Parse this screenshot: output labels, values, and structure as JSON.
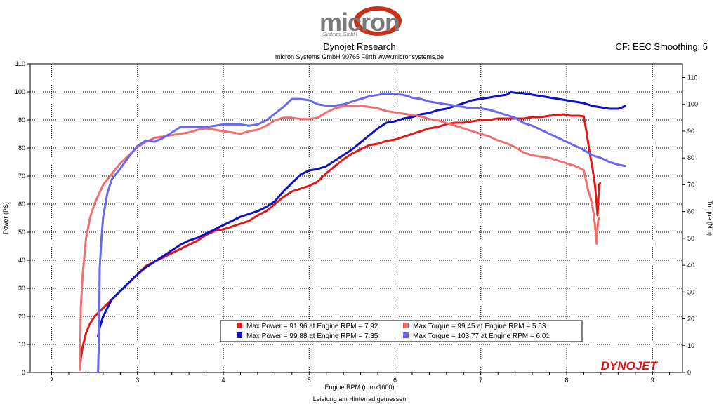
{
  "header": {
    "logo_text": "micron",
    "logo_sub": "Systems GmbH",
    "title": "Dynojet Research",
    "subtitle": "micron Systems GmbH  90765 Fürth www.micronsystems.de",
    "cf_label": "CF: EEC Smoothing: 5"
  },
  "watermark": {
    "text": "DYNOJET"
  },
  "chart_data": {
    "type": "line",
    "title": "Dynojet Research",
    "xlabel": "Engine RPM (rpmx1000)",
    "footer": "Leistung am Hinterrad gemessen",
    "ylabel": "Power (PS)",
    "y2label": "Torque (Nm)",
    "xlim": [
      1.75,
      9.35
    ],
    "ylim": [
      0,
      110
    ],
    "y2lim": [
      0,
      115.1
    ],
    "xticks": [
      2,
      3,
      4,
      5,
      6,
      7,
      8,
      9
    ],
    "yticks": [
      0,
      10,
      20,
      30,
      40,
      50,
      60,
      70,
      80,
      90,
      100,
      110
    ],
    "y2ticks": [
      0,
      10,
      20,
      30,
      40,
      50,
      60,
      70,
      80,
      90,
      100,
      110
    ],
    "grid": true,
    "legend_position": "bottom-center",
    "legend": [
      "Max Power = 91.96 at Engine RPM = 7.92",
      "Max Power = 99.88 at Engine RPM = 7.35",
      "Max Torque = 99.45 at Engine RPM = 5.53",
      "Max Torque = 103.77 at Engine RPM = 6.01"
    ],
    "series": [
      {
        "name": "Power run 1",
        "axis": "left",
        "color": "#e01818",
        "points": [
          [
            2.33,
            1
          ],
          [
            2.34,
            5
          ],
          [
            2.36,
            9
          ],
          [
            2.4,
            14
          ],
          [
            2.44,
            17
          ],
          [
            2.5,
            20
          ],
          [
            2.6,
            23
          ],
          [
            2.7,
            26
          ],
          [
            2.8,
            29
          ],
          [
            2.9,
            32
          ],
          [
            3.0,
            35
          ],
          [
            3.1,
            38
          ],
          [
            3.2,
            39.5
          ],
          [
            3.3,
            41
          ],
          [
            3.4,
            42.5
          ],
          [
            3.5,
            44
          ],
          [
            3.6,
            45.5
          ],
          [
            3.7,
            47
          ],
          [
            3.8,
            49
          ],
          [
            3.9,
            50.5
          ],
          [
            4.0,
            51
          ],
          [
            4.1,
            52
          ],
          [
            4.2,
            53
          ],
          [
            4.3,
            54
          ],
          [
            4.4,
            56
          ],
          [
            4.5,
            57.5
          ],
          [
            4.6,
            60
          ],
          [
            4.7,
            62.5
          ],
          [
            4.8,
            64.5
          ],
          [
            4.9,
            65.5
          ],
          [
            5.0,
            66.5
          ],
          [
            5.1,
            68
          ],
          [
            5.2,
            71
          ],
          [
            5.3,
            73.5
          ],
          [
            5.4,
            76
          ],
          [
            5.5,
            78
          ],
          [
            5.6,
            79.5
          ],
          [
            5.7,
            81
          ],
          [
            5.8,
            81.5
          ],
          [
            5.9,
            82.5
          ],
          [
            6.0,
            83
          ],
          [
            6.1,
            84
          ],
          [
            6.2,
            85
          ],
          [
            6.3,
            86
          ],
          [
            6.4,
            87
          ],
          [
            6.5,
            87.5
          ],
          [
            6.6,
            88.5
          ],
          [
            6.7,
            89
          ],
          [
            6.8,
            89
          ],
          [
            6.9,
            89.5
          ],
          [
            7.0,
            90
          ],
          [
            7.1,
            90
          ],
          [
            7.2,
            90.5
          ],
          [
            7.3,
            90.5
          ],
          [
            7.4,
            90.5
          ],
          [
            7.5,
            90.5
          ],
          [
            7.6,
            91
          ],
          [
            7.7,
            91
          ],
          [
            7.8,
            91.5
          ],
          [
            7.9,
            91.8
          ],
          [
            7.96,
            92
          ],
          [
            8.05,
            91.5
          ],
          [
            8.15,
            91.5
          ],
          [
            8.2,
            91.3
          ],
          [
            8.23,
            86
          ],
          [
            8.27,
            78
          ],
          [
            8.3,
            73
          ],
          [
            8.33,
            67
          ],
          [
            8.35,
            60
          ],
          [
            8.36,
            56
          ],
          [
            8.37,
            62
          ],
          [
            8.38,
            67
          ],
          [
            8.39,
            67.5
          ]
        ]
      },
      {
        "name": "Power run 2",
        "axis": "left",
        "color": "#1010c8",
        "points": [
          [
            2.54,
            13
          ],
          [
            2.56,
            16
          ],
          [
            2.6,
            20
          ],
          [
            2.65,
            23
          ],
          [
            2.7,
            26
          ],
          [
            2.8,
            29
          ],
          [
            2.9,
            32
          ],
          [
            3.0,
            35
          ],
          [
            3.1,
            37.5
          ],
          [
            3.2,
            39.5
          ],
          [
            3.3,
            41.5
          ],
          [
            3.4,
            43.5
          ],
          [
            3.5,
            45.5
          ],
          [
            3.6,
            47
          ],
          [
            3.7,
            48
          ],
          [
            3.8,
            49.5
          ],
          [
            3.9,
            51
          ],
          [
            4.0,
            52.5
          ],
          [
            4.1,
            54
          ],
          [
            4.2,
            55.5
          ],
          [
            4.3,
            56.5
          ],
          [
            4.4,
            57.5
          ],
          [
            4.5,
            59
          ],
          [
            4.6,
            61
          ],
          [
            4.7,
            64.5
          ],
          [
            4.8,
            67.5
          ],
          [
            4.9,
            70.5
          ],
          [
            5.0,
            72
          ],
          [
            5.1,
            72.5
          ],
          [
            5.2,
            73.5
          ],
          [
            5.3,
            75.5
          ],
          [
            5.4,
            77.5
          ],
          [
            5.5,
            79.5
          ],
          [
            5.6,
            82
          ],
          [
            5.7,
            84.5
          ],
          [
            5.8,
            87
          ],
          [
            5.9,
            89
          ],
          [
            6.0,
            89.5
          ],
          [
            6.1,
            90.5
          ],
          [
            6.2,
            91
          ],
          [
            6.3,
            92
          ],
          [
            6.4,
            92.5
          ],
          [
            6.5,
            93.5
          ],
          [
            6.6,
            94
          ],
          [
            6.7,
            95
          ],
          [
            6.8,
            96
          ],
          [
            6.9,
            97
          ],
          [
            7.0,
            97.5
          ],
          [
            7.1,
            98
          ],
          [
            7.2,
            98.5
          ],
          [
            7.3,
            99
          ],
          [
            7.35,
            99.9
          ],
          [
            7.4,
            99.7
          ],
          [
            7.5,
            99.5
          ],
          [
            7.6,
            99
          ],
          [
            7.7,
            98.5
          ],
          [
            7.8,
            98
          ],
          [
            7.9,
            97.5
          ],
          [
            8.0,
            97
          ],
          [
            8.1,
            96.5
          ],
          [
            8.2,
            96
          ],
          [
            8.3,
            95
          ],
          [
            8.4,
            94.5
          ],
          [
            8.5,
            94
          ],
          [
            8.6,
            94
          ],
          [
            8.65,
            94.5
          ],
          [
            8.68,
            95
          ]
        ]
      },
      {
        "name": "Torque run 1",
        "axis": "right",
        "color": "#f07070",
        "points": [
          [
            2.33,
            1
          ],
          [
            2.34,
            24
          ],
          [
            2.36,
            36
          ],
          [
            2.4,
            50
          ],
          [
            2.45,
            58
          ],
          [
            2.5,
            63
          ],
          [
            2.6,
            70
          ],
          [
            2.7,
            74
          ],
          [
            2.8,
            78
          ],
          [
            2.9,
            81
          ],
          [
            3.0,
            84
          ],
          [
            3.1,
            86
          ],
          [
            3.2,
            87.5
          ],
          [
            3.3,
            88
          ],
          [
            3.4,
            88.5
          ],
          [
            3.5,
            89
          ],
          [
            3.6,
            89.5
          ],
          [
            3.7,
            90.5
          ],
          [
            3.8,
            91
          ],
          [
            3.9,
            90.5
          ],
          [
            4.0,
            90
          ],
          [
            4.1,
            89.5
          ],
          [
            4.2,
            89
          ],
          [
            4.3,
            90
          ],
          [
            4.4,
            90.5
          ],
          [
            4.5,
            92
          ],
          [
            4.6,
            94
          ],
          [
            4.7,
            95
          ],
          [
            4.8,
            95
          ],
          [
            4.9,
            94.5
          ],
          [
            5.0,
            94.5
          ],
          [
            5.1,
            95
          ],
          [
            5.2,
            97
          ],
          [
            5.3,
            98.5
          ],
          [
            5.4,
            99.3
          ],
          [
            5.53,
            99.45
          ],
          [
            5.6,
            99.5
          ],
          [
            5.7,
            99
          ],
          [
            5.8,
            98.5
          ],
          [
            5.9,
            97.5
          ],
          [
            6.0,
            97
          ],
          [
            6.1,
            96.5
          ],
          [
            6.2,
            96
          ],
          [
            6.3,
            95.5
          ],
          [
            6.4,
            94.5
          ],
          [
            6.5,
            94
          ],
          [
            6.6,
            93
          ],
          [
            6.7,
            92
          ],
          [
            6.8,
            91
          ],
          [
            6.9,
            90
          ],
          [
            7.0,
            89
          ],
          [
            7.1,
            88
          ],
          [
            7.2,
            86.5
          ],
          [
            7.3,
            85.5
          ],
          [
            7.4,
            84
          ],
          [
            7.5,
            82
          ],
          [
            7.6,
            81
          ],
          [
            7.7,
            80.5
          ],
          [
            7.8,
            80
          ],
          [
            7.9,
            79
          ],
          [
            8.0,
            78
          ],
          [
            8.1,
            77
          ],
          [
            8.2,
            75.5
          ],
          [
            8.23,
            71
          ],
          [
            8.25,
            68
          ],
          [
            8.28,
            65
          ],
          [
            8.3,
            62
          ],
          [
            8.32,
            58
          ],
          [
            8.34,
            52
          ],
          [
            8.35,
            48
          ],
          [
            8.36,
            54
          ],
          [
            8.37,
            57
          ],
          [
            8.38,
            57.5
          ]
        ]
      },
      {
        "name": "Torque run 2",
        "axis": "right",
        "color": "#6868f0",
        "points": [
          [
            2.54,
            0
          ],
          [
            2.55,
            12
          ],
          [
            2.56,
            39
          ],
          [
            2.58,
            50
          ],
          [
            2.6,
            58
          ],
          [
            2.65,
            67
          ],
          [
            2.7,
            72
          ],
          [
            2.8,
            76
          ],
          [
            2.9,
            80.5
          ],
          [
            3.0,
            84.5
          ],
          [
            3.1,
            86.5
          ],
          [
            3.2,
            86
          ],
          [
            3.3,
            87.5
          ],
          [
            3.4,
            89.5
          ],
          [
            3.5,
            91.5
          ],
          [
            3.6,
            91.5
          ],
          [
            3.7,
            91.5
          ],
          [
            3.8,
            91.5
          ],
          [
            3.9,
            92
          ],
          [
            4.0,
            92.5
          ],
          [
            4.1,
            92.5
          ],
          [
            4.2,
            92.5
          ],
          [
            4.3,
            92
          ],
          [
            4.4,
            92.5
          ],
          [
            4.5,
            94
          ],
          [
            4.6,
            96.5
          ],
          [
            4.7,
            99
          ],
          [
            4.8,
            102
          ],
          [
            4.9,
            102
          ],
          [
            5.0,
            101.5
          ],
          [
            5.1,
            100
          ],
          [
            5.2,
            99.5
          ],
          [
            5.3,
            99.5
          ],
          [
            5.4,
            100
          ],
          [
            5.5,
            101
          ],
          [
            5.6,
            102
          ],
          [
            5.7,
            103
          ],
          [
            5.8,
            103.5
          ],
          [
            5.9,
            104
          ],
          [
            6.01,
            103.77
          ],
          [
            6.1,
            103.5
          ],
          [
            6.2,
            102.5
          ],
          [
            6.3,
            102
          ],
          [
            6.4,
            101
          ],
          [
            6.5,
            100.5
          ],
          [
            6.6,
            100
          ],
          [
            6.7,
            99.5
          ],
          [
            6.8,
            99
          ],
          [
            6.9,
            98.5
          ],
          [
            7.0,
            98.5
          ],
          [
            7.1,
            98
          ],
          [
            7.2,
            97
          ],
          [
            7.3,
            96
          ],
          [
            7.4,
            95
          ],
          [
            7.5,
            93
          ],
          [
            7.6,
            92
          ],
          [
            7.7,
            90.5
          ],
          [
            7.8,
            89
          ],
          [
            7.9,
            87.5
          ],
          [
            8.0,
            86
          ],
          [
            8.1,
            84.5
          ],
          [
            8.2,
            83
          ],
          [
            8.3,
            81
          ],
          [
            8.4,
            80
          ],
          [
            8.5,
            78.5
          ],
          [
            8.6,
            77.5
          ],
          [
            8.68,
            77
          ]
        ]
      }
    ]
  }
}
